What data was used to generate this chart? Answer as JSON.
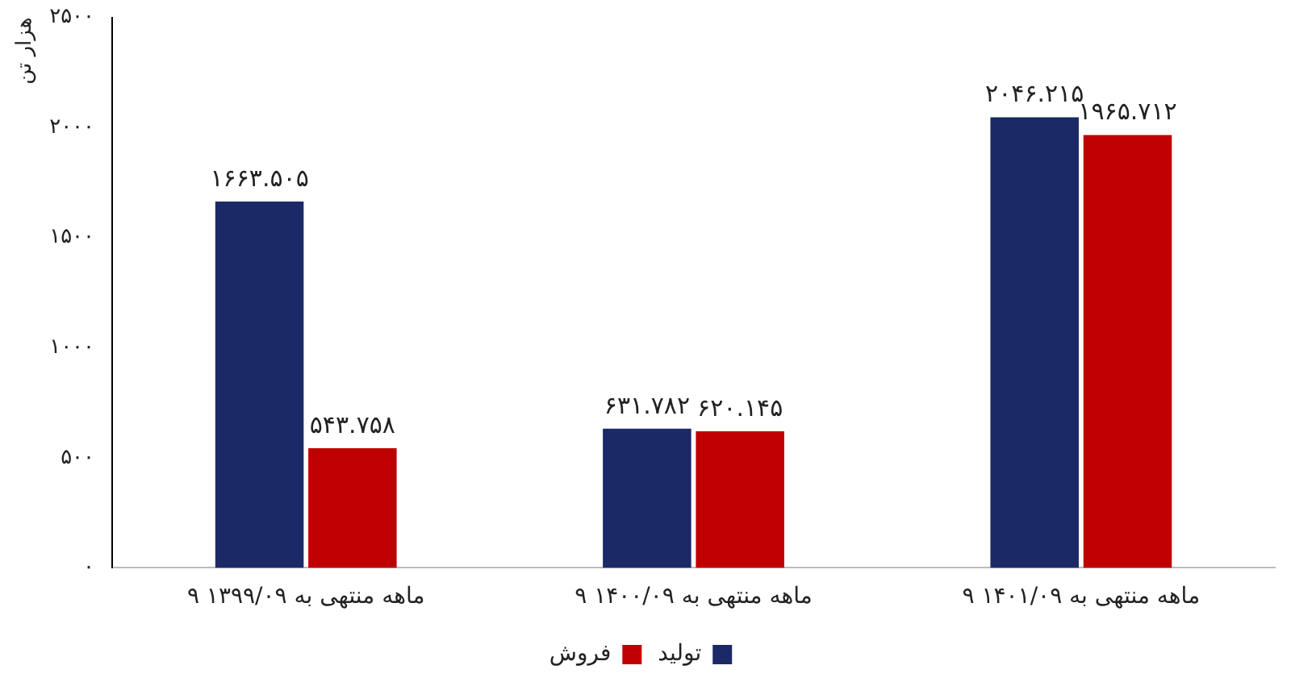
{
  "chart_data": {
    "type": "bar",
    "ylabel": "هزار تن",
    "categories": [
      "۹ ماهه منتهی به ۱۳۹۹/۰۹",
      "۹ ماهه منتهی به ۱۴۰۰/۰۹",
      "۹ ماهه منتهی به ۱۴۰۱/۰۹"
    ],
    "series": [
      {
        "name": "تولید",
        "color": "#1b2a66",
        "values": [
          1663.505,
          631.782,
          2046.215
        ],
        "value_labels": [
          "۱۶۶۳.۵۰۵",
          "۶۳۱.۷۸۲",
          "۲۰۴۶.۲۱۵"
        ]
      },
      {
        "name": "فروش",
        "color": "#c00000",
        "values": [
          543.758,
          620.145,
          1965.712
        ],
        "value_labels": [
          "۵۴۳.۷۵۸",
          "۶۲۰.۱۴۵",
          "۱۹۶۵.۷۱۲"
        ]
      }
    ],
    "ylim": [
      0,
      2500
    ],
    "yticks": [
      {
        "value": 0,
        "label": "۰"
      },
      {
        "value": 500,
        "label": "۵۰۰"
      },
      {
        "value": 1000,
        "label": "۱۰۰۰"
      },
      {
        "value": 1500,
        "label": "۱۵۰۰"
      },
      {
        "value": 2000,
        "label": "۲۰۰۰"
      },
      {
        "value": 2500,
        "label": "۲۵۰۰"
      }
    ],
    "grid": false,
    "legend": "bottom"
  }
}
